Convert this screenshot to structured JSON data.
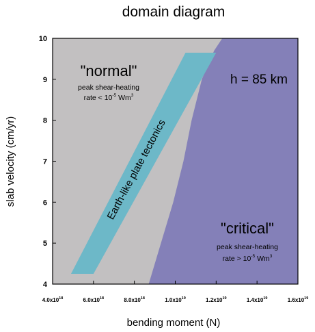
{
  "chart_data": {
    "type": "area",
    "title": "domain diagram",
    "xlabel": "bending moment (N)",
    "ylabel": "slab velocity (cm/yr)",
    "xlim": [
      4e+18,
      1.6e+19
    ],
    "ylim": [
      4,
      10
    ],
    "x_ticks": [
      {
        "mant": "4.0x10",
        "exp": "18",
        "value": 4e+18
      },
      {
        "mant": "6.0x10",
        "exp": "18",
        "value": 6e+18
      },
      {
        "mant": "8.0x10",
        "exp": "18",
        "value": 8e+18
      },
      {
        "mant": "1.0x10",
        "exp": "19",
        "value": 1e+19
      },
      {
        "mant": "1.2x10",
        "exp": "19",
        "value": 1.2e+19
      },
      {
        "mant": "1.4x10",
        "exp": "19",
        "value": 1.4e+19
      },
      {
        "mant": "1.6x10",
        "exp": "19",
        "value": 1.6e+19
      }
    ],
    "y_ticks": [
      "4",
      "5",
      "6",
      "7",
      "8",
      "9",
      "10"
    ],
    "grid": false,
    "regions": {
      "normal": {
        "label": "\"normal\"",
        "line1": "peak shear-heating",
        "line2_pre": "rate  < 10",
        "sup": "-5",
        "line2_post": " Wm",
        "sup2": "3",
        "color": "#c2c0c1"
      },
      "critical": {
        "label": "\"critical\"",
        "line1": "peak shear-heating",
        "line2_pre": "rate  > 10",
        "sup": "-5",
        "line2_post": " Wm",
        "sup2": "3",
        "color": "#8480b8",
        "boundary": [
          {
            "x": 8.7e+18,
            "y": 4.0
          },
          {
            "x": 9.3e+18,
            "y": 5.0
          },
          {
            "x": 9.9e+18,
            "y": 6.0
          },
          {
            "x": 1.04e+19,
            "y": 7.0
          },
          {
            "x": 1.08e+19,
            "y": 8.0
          },
          {
            "x": 1.13e+19,
            "y": 9.0
          },
          {
            "x": 1.19e+19,
            "y": 9.7
          },
          {
            "x": 1.23e+19,
            "y": 10.0
          }
        ]
      }
    },
    "band": {
      "label": "Earth-like plate tectonics",
      "color": "#6db8c8",
      "polygon": [
        {
          "x": 4.9e+18,
          "y": 4.25
        },
        {
          "x": 6e+18,
          "y": 4.25
        },
        {
          "x": 1.2e+19,
          "y": 9.65
        },
        {
          "x": 1.05e+19,
          "y": 9.65
        }
      ]
    },
    "annotation": "h = 85 km"
  }
}
